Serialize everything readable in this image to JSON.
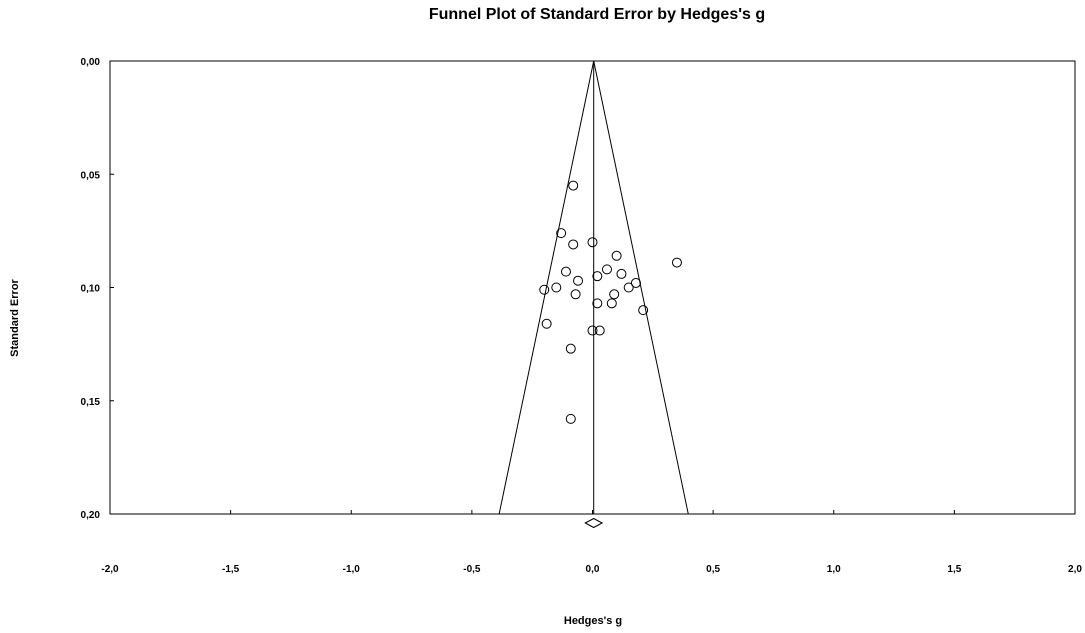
{
  "chart_data": {
    "type": "scatter",
    "title": "Funnel Plot of Standard Error by Hedges's g",
    "xlabel": "Hedges's g",
    "ylabel": "Standard Error",
    "xlim": [
      -2.0,
      2.0
    ],
    "ylim": [
      0.0,
      0.2
    ],
    "y_inverted": true,
    "x_ticks": [
      "-2,0",
      "-1,5",
      "-1,0",
      "-0,5",
      "0,0",
      "0,5",
      "1,0",
      "1,5",
      "2,0"
    ],
    "x_tick_values": [
      -2.0,
      -1.5,
      -1.0,
      -0.5,
      0.0,
      0.5,
      1.0,
      1.5,
      2.0
    ],
    "y_ticks": [
      "0,00",
      "0,05",
      "0,10",
      "0,15",
      "0,20"
    ],
    "y_tick_values": [
      0.0,
      0.05,
      0.1,
      0.15,
      0.2
    ],
    "pooled_effect": 0.005,
    "funnel_z": 1.96,
    "summary_diamond": {
      "estimate": 0.005,
      "ci_low": -0.03,
      "ci_high": 0.04
    },
    "points": [
      {
        "x": -0.08,
        "y": 0.055
      },
      {
        "x": -0.13,
        "y": 0.076
      },
      {
        "x": -0.08,
        "y": 0.081
      },
      {
        "x": 0.0,
        "y": 0.08
      },
      {
        "x": 0.1,
        "y": 0.086
      },
      {
        "x": 0.35,
        "y": 0.089
      },
      {
        "x": -0.11,
        "y": 0.093
      },
      {
        "x": 0.06,
        "y": 0.092
      },
      {
        "x": 0.02,
        "y": 0.095
      },
      {
        "x": 0.12,
        "y": 0.094
      },
      {
        "x": -0.06,
        "y": 0.097
      },
      {
        "x": -0.2,
        "y": 0.101
      },
      {
        "x": -0.15,
        "y": 0.1
      },
      {
        "x": 0.15,
        "y": 0.1
      },
      {
        "x": 0.18,
        "y": 0.098
      },
      {
        "x": -0.07,
        "y": 0.103
      },
      {
        "x": 0.09,
        "y": 0.103
      },
      {
        "x": 0.02,
        "y": 0.107
      },
      {
        "x": 0.08,
        "y": 0.107
      },
      {
        "x": 0.21,
        "y": 0.11
      },
      {
        "x": -0.19,
        "y": 0.116
      },
      {
        "x": 0.0,
        "y": 0.119
      },
      {
        "x": 0.03,
        "y": 0.119
      },
      {
        "x": -0.09,
        "y": 0.127
      },
      {
        "x": -0.09,
        "y": 0.158
      }
    ]
  }
}
